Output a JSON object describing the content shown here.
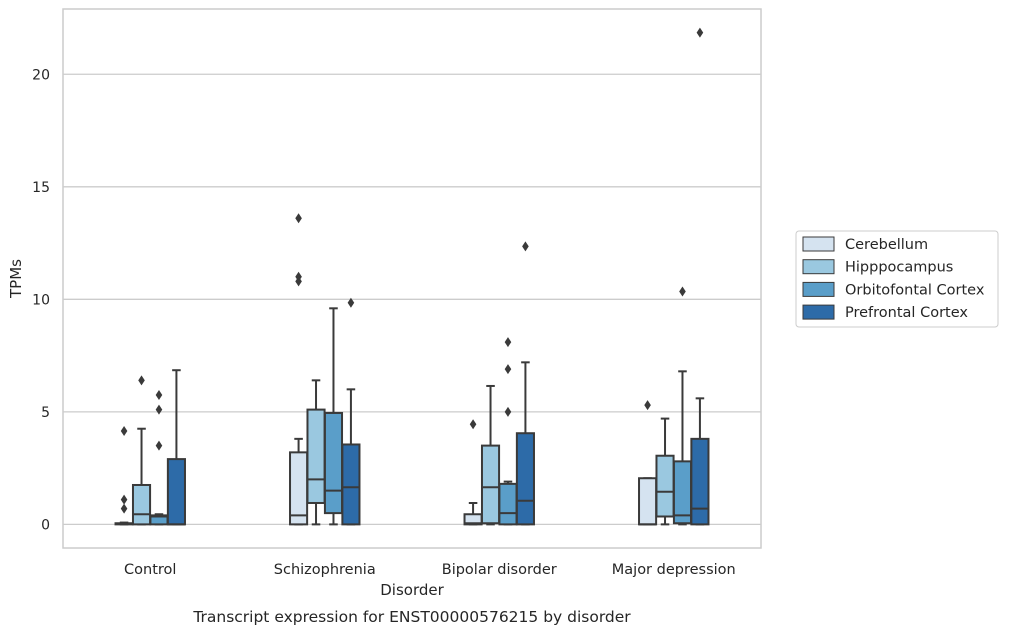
{
  "chart_data": {
    "type": "boxplot",
    "title": "",
    "caption": "Transcript expression for ENST00000576215 by disorder",
    "xlabel": "Disorder",
    "ylabel": "TPMs",
    "ylim": [
      -1.05,
      22.9
    ],
    "yticks": [
      0,
      5,
      10,
      15,
      20
    ],
    "grid": "horizontal",
    "legend_position": "right",
    "categories": [
      "Control",
      "Schizophrenia",
      "Bipolar disorder",
      "Major depression"
    ],
    "series": [
      {
        "name": "Cerebellum",
        "color": "#d5e3f0",
        "boxes": [
          {
            "whislo": 0,
            "q1": 0,
            "med": 0.02,
            "q3": 0.05,
            "whishi": 0.08,
            "fliers": [
              0.7,
              1.1,
              4.15
            ]
          },
          {
            "whislo": 0,
            "q1": 0,
            "med": 0.4,
            "q3": 3.2,
            "whishi": 3.8,
            "fliers": [
              10.8,
              11.0,
              13.6
            ]
          },
          {
            "whislo": 0,
            "q1": 0,
            "med": 0.05,
            "q3": 0.45,
            "whishi": 0.95,
            "fliers": [
              4.45
            ]
          },
          {
            "whislo": 0,
            "q1": 0,
            "med": 0,
            "q3": 2.05,
            "whishi": 2.05,
            "fliers": [
              5.3
            ]
          }
        ]
      },
      {
        "name": "Hipppocampus",
        "color": "#9ac8e0",
        "boxes": [
          {
            "whislo": 0,
            "q1": 0,
            "med": 0.45,
            "q3": 1.75,
            "whishi": 4.25,
            "fliers": [
              6.4
            ]
          },
          {
            "whislo": 0,
            "q1": 0.95,
            "med": 2.0,
            "q3": 5.1,
            "whishi": 6.4,
            "fliers": []
          },
          {
            "whislo": 0,
            "q1": 0.05,
            "med": 1.65,
            "q3": 3.5,
            "whishi": 6.15,
            "fliers": []
          },
          {
            "whislo": 0,
            "q1": 0.35,
            "med": 1.45,
            "q3": 3.05,
            "whishi": 4.7,
            "fliers": []
          }
        ]
      },
      {
        "name": "Orbitofontal Cortex",
        "color": "#5a9ec9",
        "boxes": [
          {
            "whislo": 0,
            "q1": 0,
            "med": 0.35,
            "q3": 0.4,
            "whishi": 0.45,
            "fliers": [
              3.5,
              5.1,
              5.75
            ]
          },
          {
            "whislo": 0,
            "q1": 0.5,
            "med": 1.5,
            "q3": 4.95,
            "whishi": 9.6,
            "fliers": []
          },
          {
            "whislo": 0,
            "q1": 0,
            "med": 0.5,
            "q3": 1.8,
            "whishi": 1.9,
            "fliers": [
              5.0,
              6.9,
              8.1
            ]
          },
          {
            "whislo": 0,
            "q1": 0.05,
            "med": 0.4,
            "q3": 2.8,
            "whishi": 6.8,
            "fliers": [
              10.35
            ]
          }
        ]
      },
      {
        "name": "Prefrontal Cortex",
        "color": "#2d6ba8",
        "boxes": [
          {
            "whislo": 0,
            "q1": 0,
            "med": 0,
            "q3": 2.9,
            "whishi": 6.85,
            "fliers": []
          },
          {
            "whislo": 0,
            "q1": 0,
            "med": 1.65,
            "q3": 3.55,
            "whishi": 6.0,
            "fliers": [
              9.85
            ]
          },
          {
            "whislo": 0,
            "q1": 0,
            "med": 1.05,
            "q3": 4.05,
            "whishi": 7.2,
            "fliers": [
              12.35
            ]
          },
          {
            "whislo": 0,
            "q1": 0,
            "med": 0.7,
            "q3": 3.8,
            "whishi": 5.6,
            "fliers": [
              21.85
            ]
          }
        ]
      }
    ]
  }
}
